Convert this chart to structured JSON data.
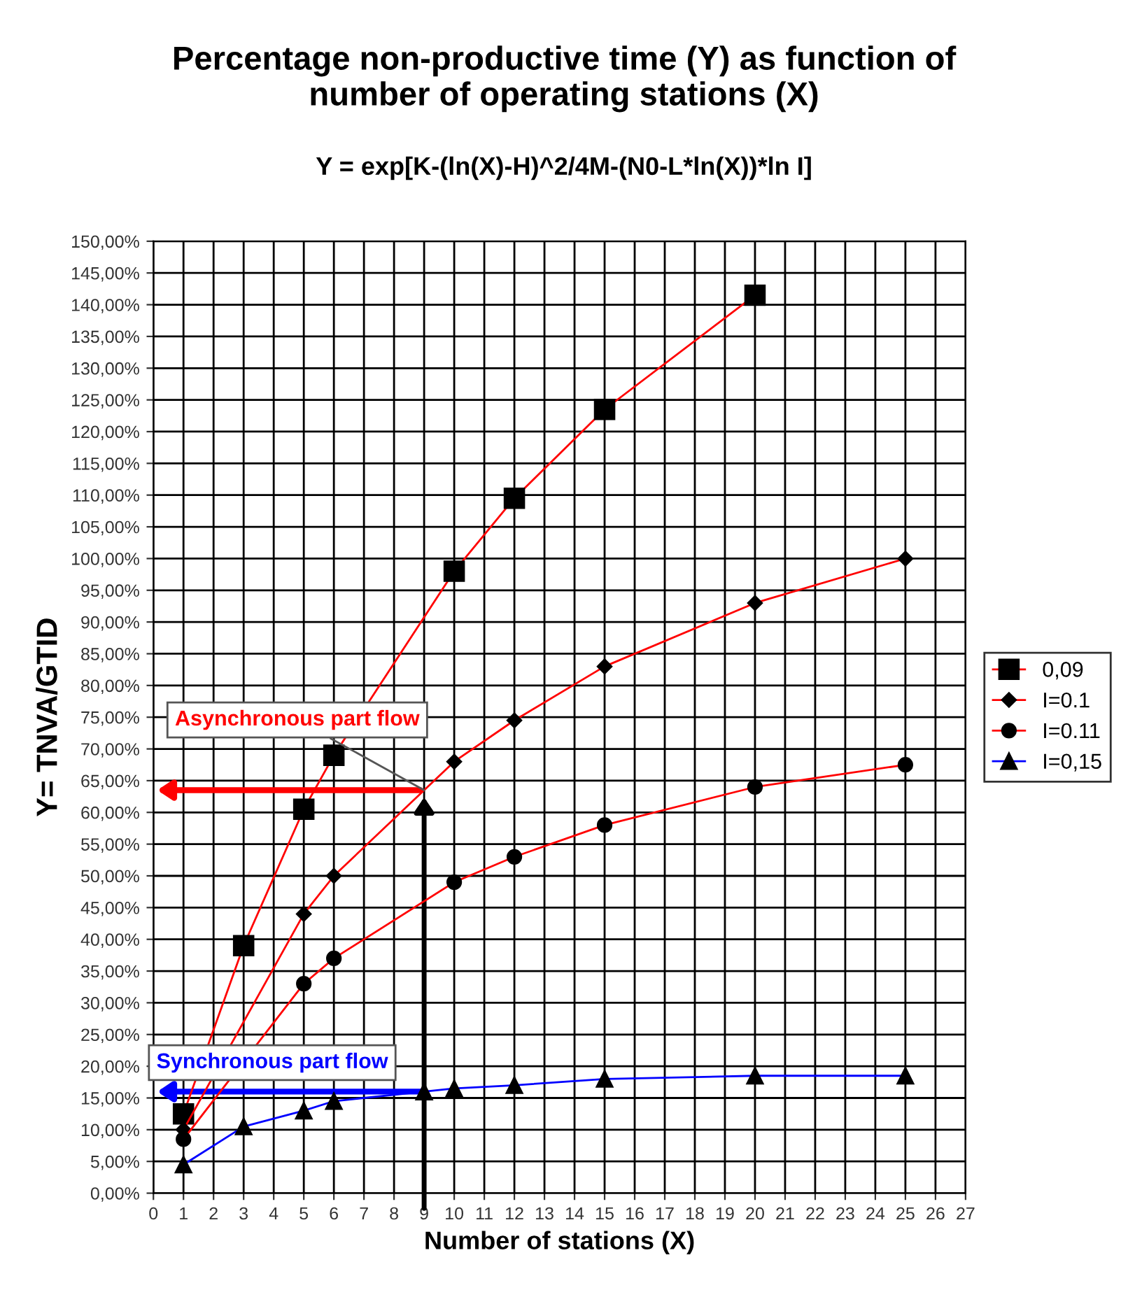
{
  "chart_data": {
    "type": "line",
    "title": "Percentage non-productive time (Y) as function of\nnumber of operating stations (X)",
    "subtitle": "Y = exp[K-(ln(X)-H)^2/4M-(N0-L*ln(X))*ln I]",
    "xlabel": "Number of stations (X)",
    "ylabel": "Y= TNVA/GTID",
    "series": [
      {
        "name": "0,09",
        "color": "#ff0000",
        "marker": "square",
        "x": [
          1,
          3,
          5,
          6,
          10,
          12,
          15,
          20
        ],
        "values": [
          12.5,
          39,
          60.5,
          69,
          98,
          109.5,
          123.5,
          141.5
        ]
      },
      {
        "name": "I=0.1",
        "color": "#ff0000",
        "marker": "diamond",
        "x": [
          1,
          5,
          6,
          10,
          12,
          15,
          20,
          25
        ],
        "values": [
          10,
          44,
          50,
          68,
          74.5,
          83,
          93,
          100
        ]
      },
      {
        "name": "I=0.11",
        "color": "#ff0000",
        "marker": "circle",
        "x": [
          1,
          5,
          6,
          10,
          12,
          15,
          20,
          25
        ],
        "values": [
          8.5,
          33,
          37,
          49,
          53,
          58,
          64,
          67.5
        ]
      },
      {
        "name": "I=0,15",
        "color": "#0000ff",
        "marker": "triangle",
        "x": [
          1,
          3,
          5,
          6,
          9,
          10,
          12,
          15,
          20,
          25
        ],
        "values": [
          4.5,
          10.5,
          13,
          14.5,
          16,
          16.5,
          17,
          18,
          18.5,
          18.5
        ]
      }
    ],
    "xlim": [
      0,
      27
    ],
    "xticks": [
      0,
      1,
      2,
      3,
      4,
      5,
      6,
      7,
      8,
      9,
      10,
      11,
      12,
      13,
      14,
      15,
      16,
      17,
      18,
      19,
      20,
      21,
      22,
      23,
      24,
      25,
      26,
      27
    ],
    "ylim": [
      0,
      150
    ],
    "yticks": [
      {
        "value": 0,
        "label": "0,00%"
      },
      {
        "value": 5,
        "label": "5,00%"
      },
      {
        "value": 10,
        "label": "10,00%"
      },
      {
        "value": 15,
        "label": "15,00%"
      },
      {
        "value": 20,
        "label": "20,00%"
      },
      {
        "value": 25,
        "label": "25,00%"
      },
      {
        "value": 30,
        "label": "30,00%"
      },
      {
        "value": 35,
        "label": "35,00%"
      },
      {
        "value": 40,
        "label": "40,00%"
      },
      {
        "value": 45,
        "label": "45,00%"
      },
      {
        "value": 50,
        "label": "50,00%"
      },
      {
        "value": 55,
        "label": "55,00%"
      },
      {
        "value": 60,
        "label": "60,00%"
      },
      {
        "value": 65,
        "label": "65,00%"
      },
      {
        "value": 70,
        "label": "70,00%"
      },
      {
        "value": 75,
        "label": "75,00%"
      },
      {
        "value": 80,
        "label": "80,00%"
      },
      {
        "value": 85,
        "label": "85,00%"
      },
      {
        "value": 90,
        "label": "90,00%"
      },
      {
        "value": 95,
        "label": "95,00%"
      },
      {
        "value": 100,
        "label": "100,00%"
      },
      {
        "value": 105,
        "label": "105,00%"
      },
      {
        "value": 110,
        "label": "110,00%"
      },
      {
        "value": 115,
        "label": "115,00%"
      },
      {
        "value": 120,
        "label": "120,00%"
      },
      {
        "value": 125,
        "label": "125,00%"
      },
      {
        "value": 130,
        "label": "130,00%"
      },
      {
        "value": 135,
        "label": "135,00%"
      },
      {
        "value": 140,
        "label": "140,00%"
      },
      {
        "value": 145,
        "label": "145,00%"
      },
      {
        "value": 150,
        "label": "150,00%"
      }
    ],
    "annotations": [
      {
        "text": "Asynchronous part flow",
        "x": 9,
        "y": 63.5
      },
      {
        "text": "Synchronous part flow",
        "x": 9,
        "y": 16
      }
    ],
    "grid": true,
    "legend": "right",
    "line_style": "solid"
  }
}
